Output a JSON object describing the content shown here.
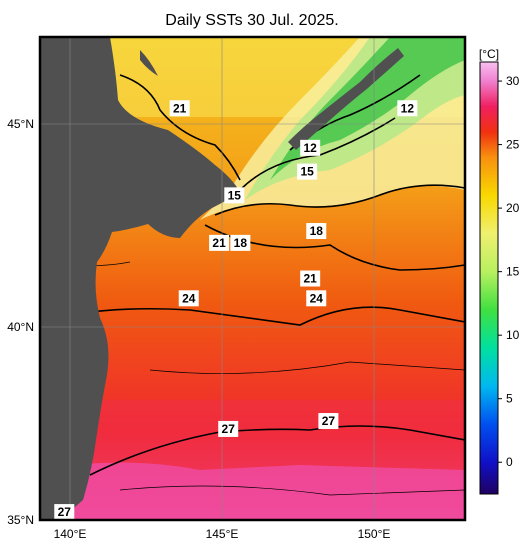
{
  "title": "Daily SSTs 30 Jul. 2025.",
  "map": {
    "lon_range": [
      139,
      153
    ],
    "lat_range": [
      35,
      47.2
    ],
    "lat_ticks": [
      {
        "value": 35,
        "label": "35°N"
      },
      {
        "value": 40,
        "label": "40°N"
      },
      {
        "value": 45,
        "label": "45°N"
      }
    ],
    "lon_ticks": [
      {
        "value": 140,
        "label": "140°E"
      },
      {
        "value": 145,
        "label": "145°E"
      },
      {
        "value": 150,
        "label": "150°E"
      }
    ],
    "land_color": "#505050",
    "contour_labels": [
      {
        "text": "21",
        "lon": 143.6,
        "lat": 45.4
      },
      {
        "text": "12",
        "lon": 151.1,
        "lat": 45.4
      },
      {
        "text": "12",
        "lon": 147.9,
        "lat": 44.4
      },
      {
        "text": "15",
        "lon": 147.8,
        "lat": 43.8
      },
      {
        "text": "15",
        "lon": 145.4,
        "lat": 43.2
      },
      {
        "text": "18",
        "lon": 148.1,
        "lat": 42.3
      },
      {
        "text": "21",
        "lon": 144.9,
        "lat": 42.0
      },
      {
        "text": "18",
        "lon": 145.6,
        "lat": 42.0
      },
      {
        "text": "21",
        "lon": 147.9,
        "lat": 41.1
      },
      {
        "text": "24",
        "lon": 143.9,
        "lat": 40.6
      },
      {
        "text": "24",
        "lon": 148.1,
        "lat": 40.6
      },
      {
        "text": "27",
        "lon": 145.2,
        "lat": 37.3
      },
      {
        "text": "27",
        "lon": 148.5,
        "lat": 37.5
      },
      {
        "text": "27",
        "lon": 139.8,
        "lat": 35.2
      }
    ]
  },
  "colorbar": {
    "unit": "[°C]",
    "min": -2.5,
    "max": 31.5,
    "tick_values": [
      0,
      5,
      10,
      15,
      20,
      25,
      30
    ],
    "tick_labels": [
      "0",
      "5",
      "10",
      "15",
      "20",
      "25",
      "30"
    ],
    "stops": [
      {
        "v": -2.5,
        "c": "#200060"
      },
      {
        "v": 0,
        "c": "#1010c8"
      },
      {
        "v": 3,
        "c": "#0050f0"
      },
      {
        "v": 6,
        "c": "#00b8f0"
      },
      {
        "v": 9,
        "c": "#00e0a0"
      },
      {
        "v": 12,
        "c": "#40e040"
      },
      {
        "v": 15,
        "c": "#b8f060"
      },
      {
        "v": 18,
        "c": "#f0f070"
      },
      {
        "v": 21,
        "c": "#f8d800"
      },
      {
        "v": 24,
        "c": "#f89010"
      },
      {
        "v": 26,
        "c": "#f03010"
      },
      {
        "v": 28,
        "c": "#f02060"
      },
      {
        "v": 30,
        "c": "#f080d0"
      },
      {
        "v": 31.5,
        "c": "#f8c0f0"
      }
    ]
  }
}
